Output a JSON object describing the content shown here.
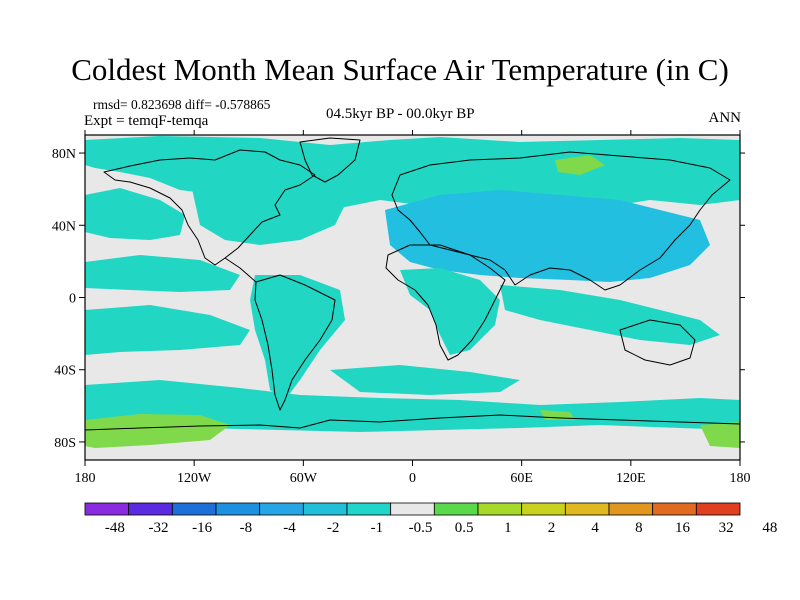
{
  "title": "Coldest Month Mean Surface Air Temperature (in C)",
  "stats_text": "rmsd= 0.823698 diff= -0.578865",
  "expt_text": "Expt = temqF-temqa",
  "period_text": "04.5kyr BP - 00.0kyr BP",
  "season_text": "ANN",
  "map": {
    "ocean_color": "#e8e8e8",
    "x_ticks": [
      "180",
      "120W",
      "60W",
      "0",
      "60E",
      "120E",
      "180"
    ],
    "y_ticks": [
      "80N",
      "40N",
      "0",
      "40S",
      "80S"
    ]
  },
  "colorbar": {
    "colors": [
      "#8a2be2",
      "#5a2be0",
      "#1e6fd9",
      "#1e90e0",
      "#26a6e6",
      "#22bfd9",
      "#1fd6c8",
      "#e8e8e8",
      "#5ad94a",
      "#a6d92a",
      "#c9d31f",
      "#e0b81f",
      "#e0961f",
      "#e06a1f",
      "#e0401f"
    ],
    "labels": [
      "-48",
      "-32",
      "-16",
      "-8",
      "-4",
      "-2",
      "-1",
      "-0.5",
      "0.5",
      "1",
      "2",
      "4",
      "8",
      "16",
      "32",
      "48"
    ]
  }
}
